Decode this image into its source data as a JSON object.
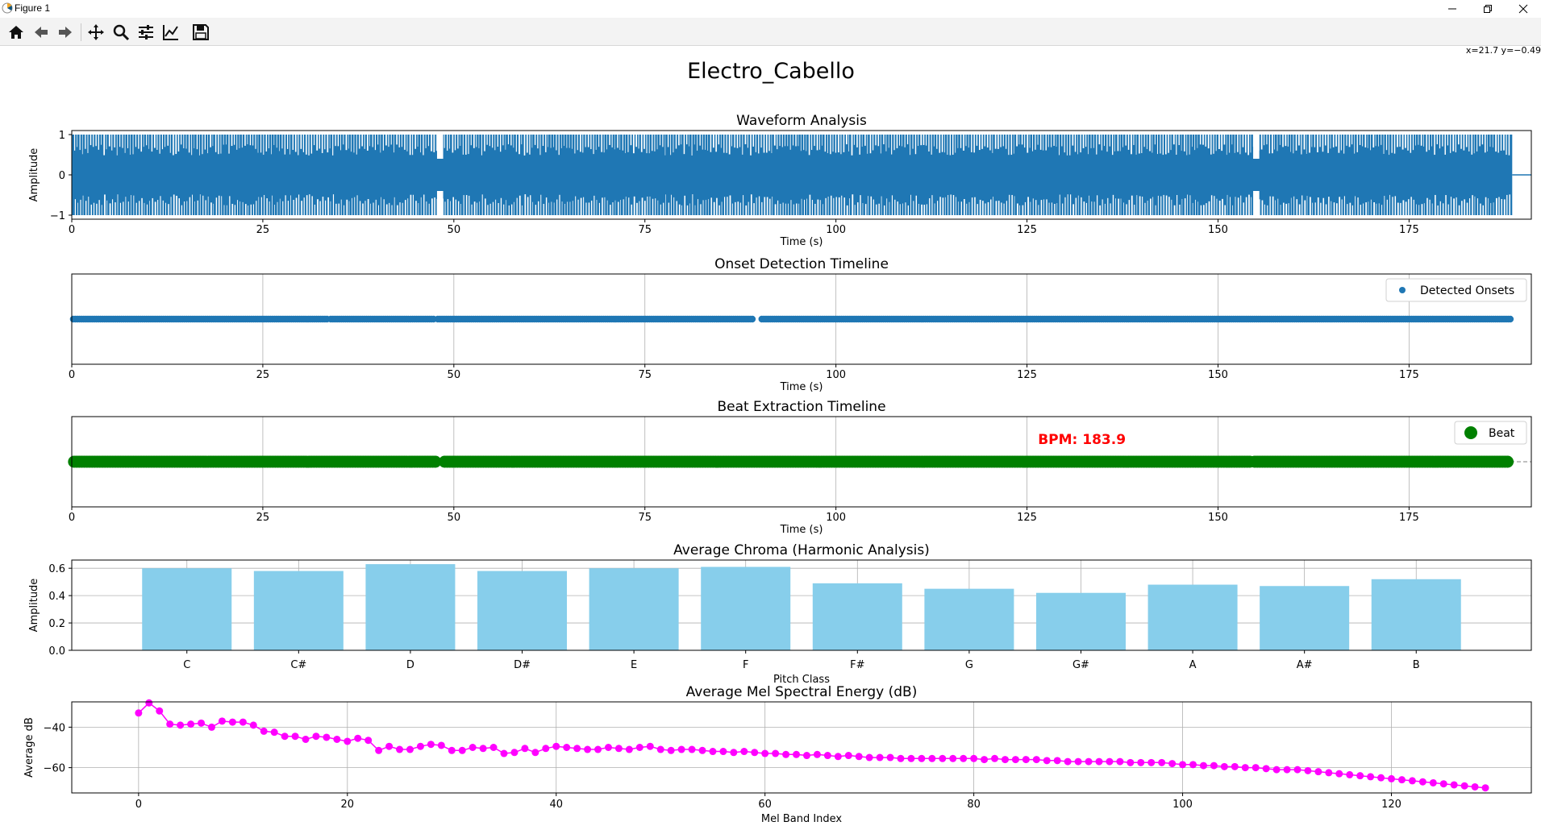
{
  "window": {
    "title": "Figure 1",
    "coord_readout": "x=21.7 y=−0.49"
  },
  "toolbar": {
    "buttons": [
      {
        "name": "home",
        "icon": "home-icon"
      },
      {
        "name": "back",
        "icon": "arrow-left-icon"
      },
      {
        "name": "forward",
        "icon": "arrow-right-icon"
      },
      {
        "name": "pan",
        "icon": "move-icon"
      },
      {
        "name": "zoom",
        "icon": "magnifier-icon"
      },
      {
        "name": "subplots",
        "icon": "sliders-icon"
      },
      {
        "name": "edit-axes",
        "icon": "line-chart-icon"
      },
      {
        "name": "save",
        "icon": "floppy-disk-icon"
      }
    ]
  },
  "figure": {
    "suptitle": "Electro_Cabello"
  },
  "chart_data": [
    {
      "type": "line",
      "title": "Waveform Analysis",
      "xlabel": "Time (s)",
      "ylabel": "Amplitude",
      "xlim": [
        0,
        191
      ],
      "ylim": [
        -1.1,
        1.1
      ],
      "xticks": [
        0,
        25,
        50,
        75,
        100,
        125,
        150,
        175
      ],
      "yticks": [
        -1,
        0,
        1
      ],
      "grid": false,
      "color": "#1f77b4",
      "duration": 188.5,
      "envelope": {
        "description_level": "near-full amplitude with periodic gaps",
        "peak": 1.0,
        "quiet_regions": [
          [
            47.8,
            48.6
          ],
          [
            154.6,
            155.4
          ]
        ]
      }
    },
    {
      "type": "scatter",
      "title": "Onset Detection Timeline",
      "xlabel": "Time (s)",
      "xlim": [
        0,
        191
      ],
      "xticks": [
        0,
        25,
        50,
        75,
        100,
        125,
        150,
        175
      ],
      "grid": true,
      "legend": {
        "placement": "top-right",
        "entries": [
          "Detected Onsets"
        ]
      },
      "color": "#1f77b4",
      "y": 1,
      "covered_spans": [
        [
          0.2,
          33.4
        ],
        [
          33.9,
          47.5
        ],
        [
          47.9,
          89.3
        ],
        [
          90.3,
          188.3
        ]
      ]
    },
    {
      "type": "scatter",
      "title": "Beat Extraction Timeline",
      "xlabel": "Time (s)",
      "xlim": [
        0,
        191
      ],
      "xticks": [
        0,
        25,
        50,
        75,
        100,
        125,
        150,
        175
      ],
      "grid": true,
      "legend": {
        "placement": "top-right",
        "entries": [
          "Beat"
        ]
      },
      "color": "#008000",
      "y": 1,
      "bpm_label": "BPM: 183.9",
      "bpm_label_color": "#ff0000",
      "covered_spans": [
        [
          0.3,
          47.8
        ],
        [
          48.8,
          154.3
        ],
        [
          154.8,
          188.2
        ]
      ]
    },
    {
      "type": "bar",
      "title": "Average Chroma (Harmonic Analysis)",
      "xlabel": "Pitch Class",
      "ylabel": "Amplitude",
      "ylim": [
        0,
        0.66
      ],
      "yticks": [
        "0.0",
        "0.2",
        "0.4",
        "0.6"
      ],
      "grid": true,
      "color": "#87ceeb",
      "categories": [
        "C",
        "C#",
        "D",
        "D#",
        "E",
        "F",
        "F#",
        "G",
        "G#",
        "A",
        "A#",
        "B"
      ],
      "values": [
        0.6,
        0.58,
        0.63,
        0.58,
        0.6,
        0.61,
        0.49,
        0.45,
        0.42,
        0.48,
        0.47,
        0.52
      ]
    },
    {
      "type": "line",
      "title": "Average Mel Spectral Energy (dB)",
      "xlabel": "Mel Band Index",
      "ylabel": "Average dB",
      "xlim": [
        -6.4,
        133.4
      ],
      "ylim": [
        -72.5,
        -27.5
      ],
      "xticks": [
        0,
        20,
        40,
        60,
        80,
        100,
        120
      ],
      "yticks": [
        -40,
        -60
      ],
      "grid": true,
      "color": "#ff00ff",
      "x_start": 0,
      "values": [
        -33,
        -28,
        -32,
        -38.5,
        -39,
        -38.5,
        -38,
        -40,
        -37,
        -37.5,
        -37.5,
        -39,
        -42,
        -42.5,
        -44.5,
        -44.5,
        -46,
        -44.5,
        -45,
        -46,
        -47,
        -45.5,
        -46.5,
        -51.5,
        -49.5,
        -51,
        -51,
        -49.5,
        -48.5,
        -49,
        -51.5,
        -51.5,
        -50,
        -50.5,
        -50,
        -53,
        -52.5,
        -50.5,
        -52.5,
        -50.5,
        -49.5,
        -50,
        -50.5,
        -51,
        -51,
        -50,
        -50.5,
        -51,
        -50,
        -49.5,
        -51,
        -51.5,
        -51,
        -51,
        -51.5,
        -52,
        -52,
        -52.5,
        -52,
        -52.5,
        -53,
        -53,
        -53.5,
        -53.5,
        -54,
        -53.5,
        -54,
        -54.5,
        -54,
        -54.5,
        -55,
        -55,
        -55,
        -55.5,
        -55.5,
        -55.5,
        -55.5,
        -55.5,
        -55.5,
        -55.5,
        -55.5,
        -56,
        -55.5,
        -56,
        -56,
        -56,
        -56,
        -56.5,
        -56.5,
        -57,
        -57,
        -57,
        -57,
        -57,
        -57,
        -57.5,
        -57.5,
        -57.5,
        -57.5,
        -58,
        -58.5,
        -58.5,
        -59,
        -59,
        -59.5,
        -59.5,
        -60,
        -60,
        -60.5,
        -61,
        -61,
        -61,
        -61.5,
        -62,
        -62.5,
        -63,
        -63.5,
        -64,
        -64.5,
        -65,
        -65.5,
        -66,
        -66.5,
        -67,
        -67.5,
        -68,
        -68.5,
        -69,
        -69.5,
        -70
      ]
    }
  ]
}
